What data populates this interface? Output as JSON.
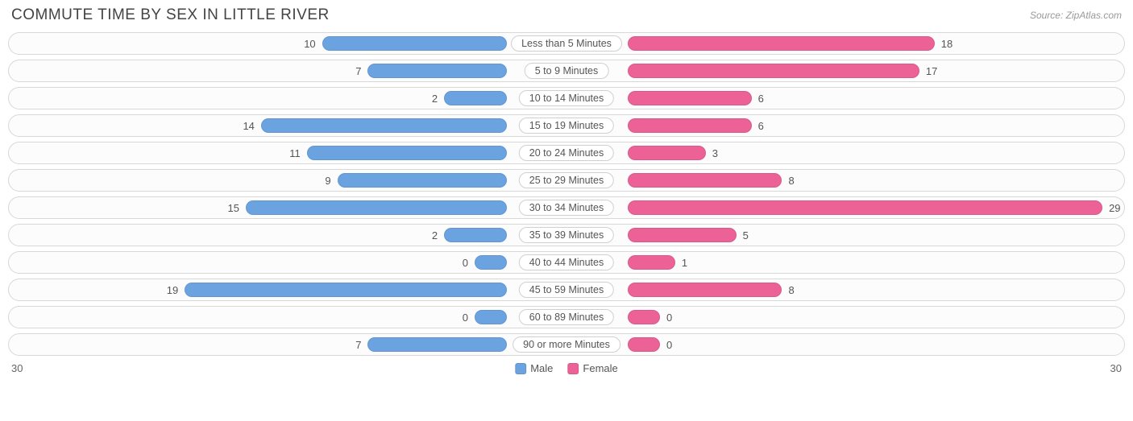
{
  "title": "COMMUTE TIME BY SEX IN LITTLE RIVER",
  "source": "Source: ZipAtlas.com",
  "chart": {
    "type": "diverging-bar",
    "max": 30,
    "axis_left": "30",
    "axis_right": "30",
    "male_color": "#6ba3e0",
    "female_color": "#ec6296",
    "background_color": "#ffffff",
    "row_border_color": "#d8d8d8",
    "text_color": "#555555",
    "categories": [
      {
        "label": "Less than 5 Minutes",
        "male": 10,
        "female": 18
      },
      {
        "label": "5 to 9 Minutes",
        "male": 7,
        "female": 17
      },
      {
        "label": "10 to 14 Minutes",
        "male": 2,
        "female": 6
      },
      {
        "label": "15 to 19 Minutes",
        "male": 14,
        "female": 6
      },
      {
        "label": "20 to 24 Minutes",
        "male": 11,
        "female": 3
      },
      {
        "label": "25 to 29 Minutes",
        "male": 9,
        "female": 8
      },
      {
        "label": "30 to 34 Minutes",
        "male": 15,
        "female": 29
      },
      {
        "label": "35 to 39 Minutes",
        "male": 2,
        "female": 5
      },
      {
        "label": "40 to 44 Minutes",
        "male": 0,
        "female": 1
      },
      {
        "label": "45 to 59 Minutes",
        "male": 19,
        "female": 8
      },
      {
        "label": "60 to 89 Minutes",
        "male": 0,
        "female": 0
      },
      {
        "label": "90 or more Minutes",
        "male": 7,
        "female": 0
      }
    ],
    "legend": {
      "male": "Male",
      "female": "Female"
    }
  }
}
